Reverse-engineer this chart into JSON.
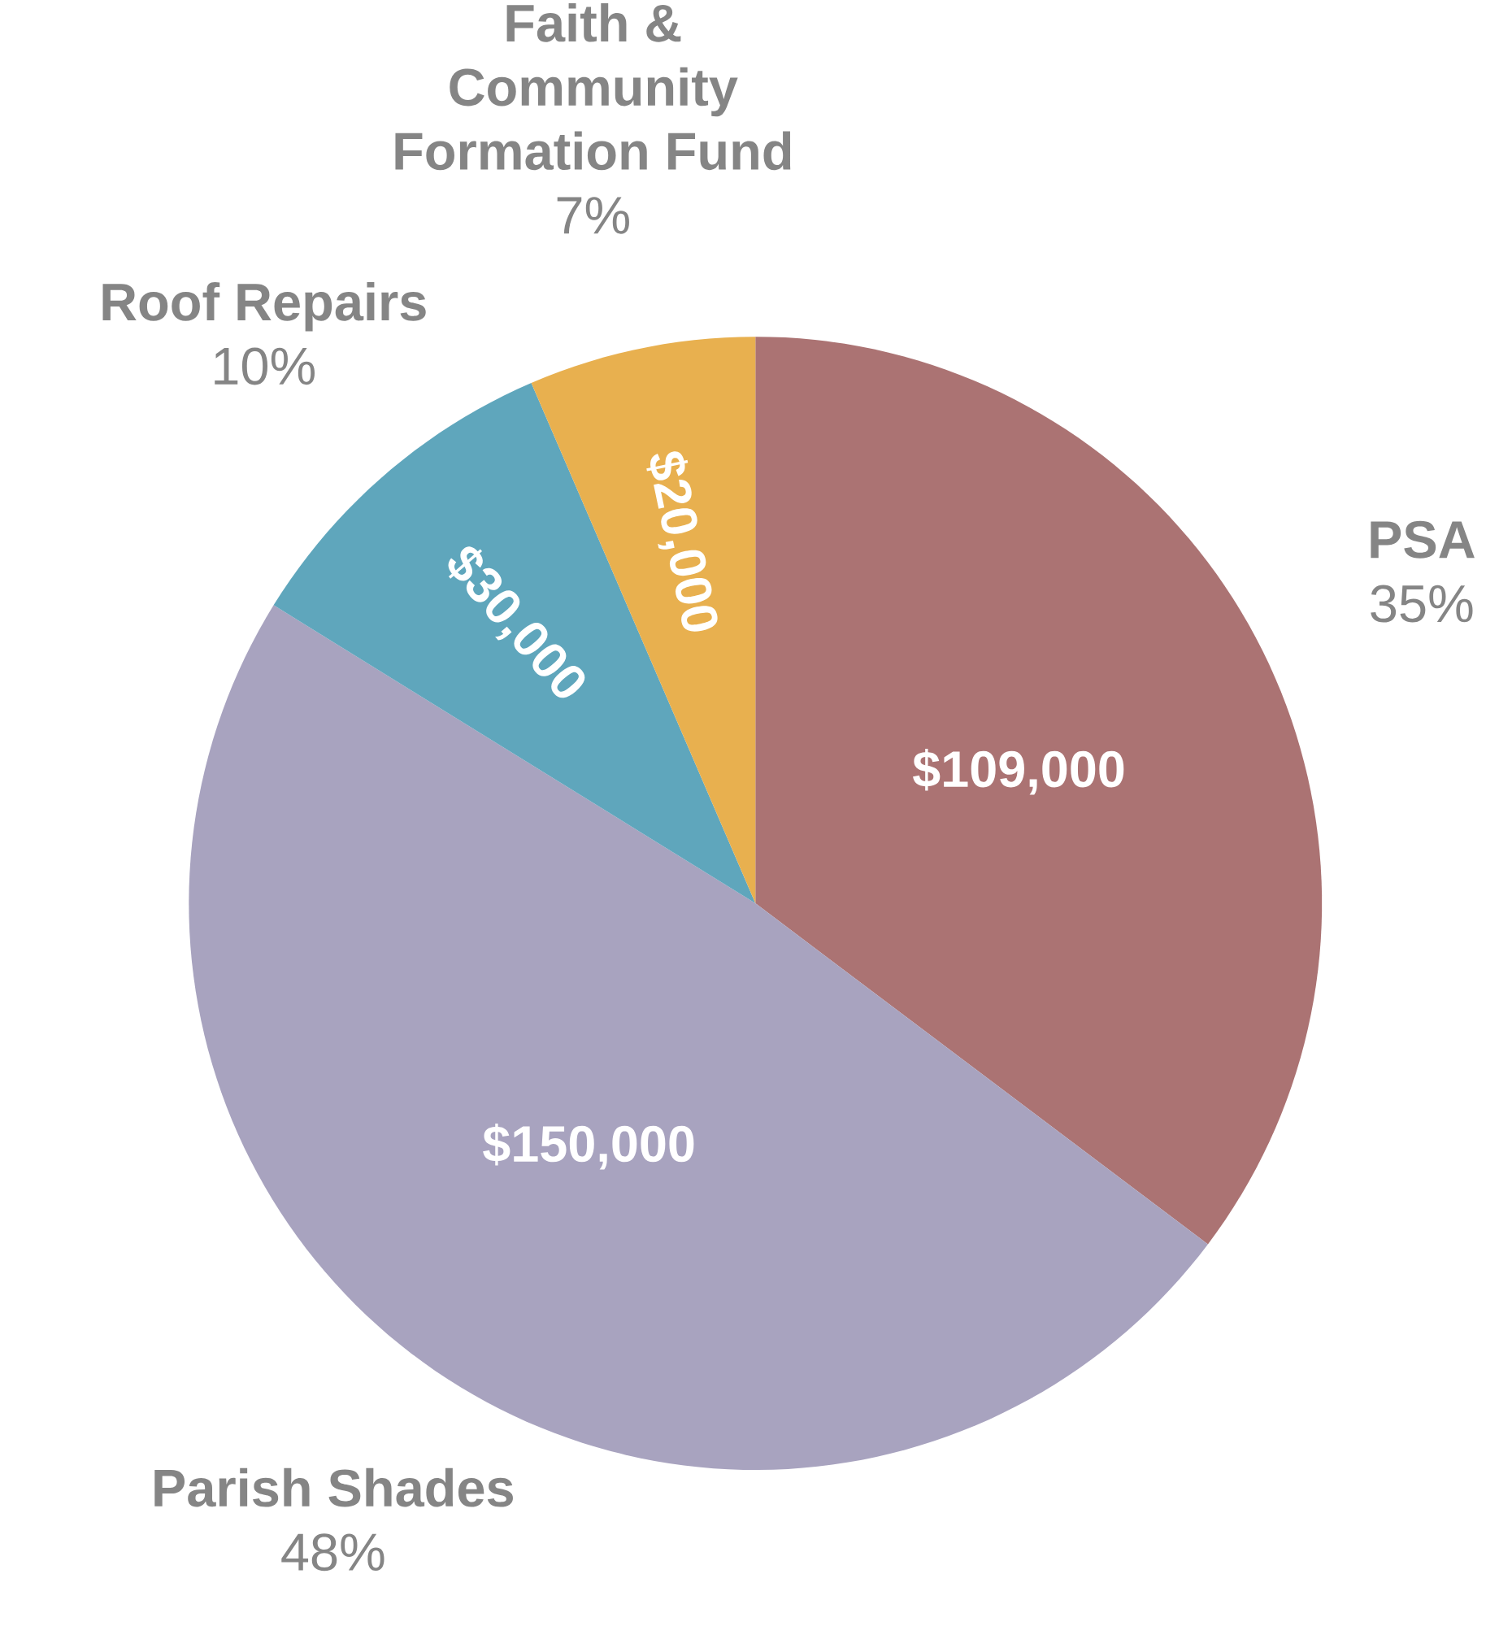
{
  "chart_data": {
    "type": "pie",
    "categories": [
      "PSA",
      "Parish Shades",
      "Roof Repairs",
      "Faith & Community Formation Fund"
    ],
    "values": [
      109000,
      150000,
      30000,
      20000
    ],
    "value_labels": [
      "$109,000",
      "$150,000",
      "$30,000",
      "$20,000"
    ],
    "colors": [
      "#ab7373",
      "#a8a3bf",
      "#5fa6bc",
      "#e8b04f"
    ],
    "annotations": [
      "35%",
      "48%",
      "10%",
      "7%"
    ]
  }
}
